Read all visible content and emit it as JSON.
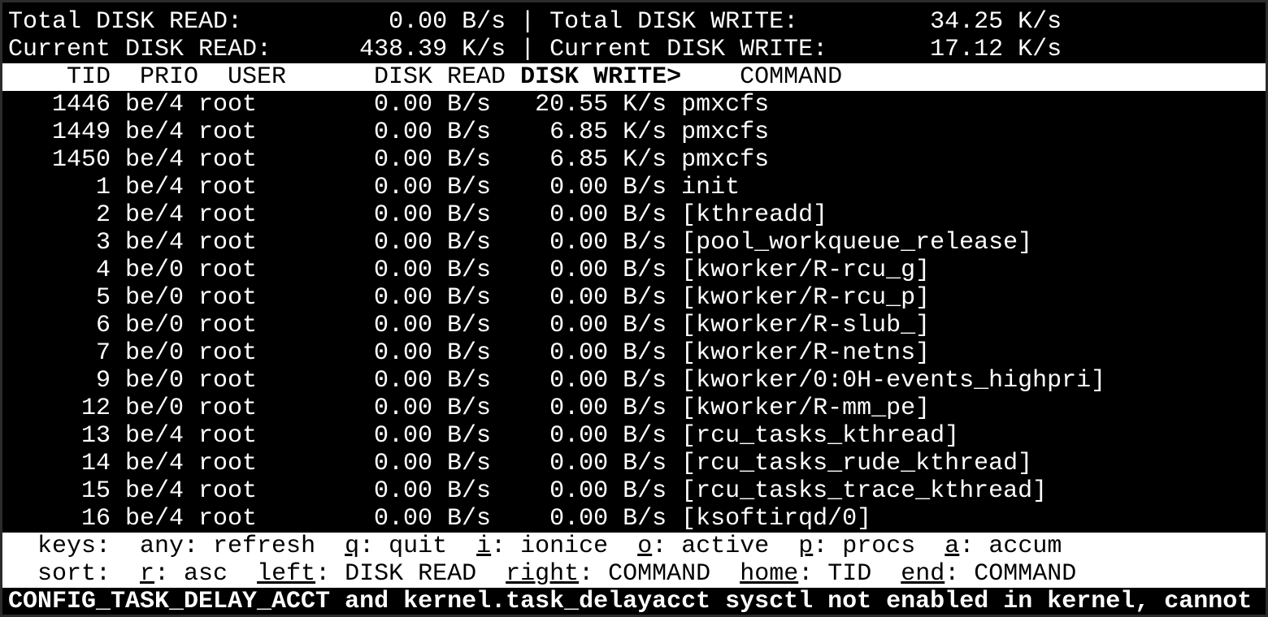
{
  "summary": {
    "total_read_label": "Total DISK READ:",
    "total_read": "0.00 B/s",
    "total_write_label": "Total DISK WRITE:",
    "total_write": "34.25 K/s",
    "current_read_label": "Current DISK READ:",
    "current_read": "438.39 K/s",
    "current_write_label": "Current DISK WRITE:",
    "current_write": "17.12 K/s",
    "separator": "|"
  },
  "columns": {
    "tid": "TID",
    "prio": "PRIO",
    "user": "USER",
    "disk_read": "DISK READ",
    "disk_write": "DISK WRITE>",
    "command": "COMMAND"
  },
  "rows": [
    {
      "tid": "1446",
      "prio": "be/4",
      "user": "root",
      "read": "0.00 B/s",
      "write": "20.55 K/s",
      "command": "pmxcfs"
    },
    {
      "tid": "1449",
      "prio": "be/4",
      "user": "root",
      "read": "0.00 B/s",
      "write": "6.85 K/s",
      "command": "pmxcfs"
    },
    {
      "tid": "1450",
      "prio": "be/4",
      "user": "root",
      "read": "0.00 B/s",
      "write": "6.85 K/s",
      "command": "pmxcfs"
    },
    {
      "tid": "1",
      "prio": "be/4",
      "user": "root",
      "read": "0.00 B/s",
      "write": "0.00 B/s",
      "command": "init"
    },
    {
      "tid": "2",
      "prio": "be/4",
      "user": "root",
      "read": "0.00 B/s",
      "write": "0.00 B/s",
      "command": "[kthreadd]"
    },
    {
      "tid": "3",
      "prio": "be/4",
      "user": "root",
      "read": "0.00 B/s",
      "write": "0.00 B/s",
      "command": "[pool_workqueue_release]"
    },
    {
      "tid": "4",
      "prio": "be/0",
      "user": "root",
      "read": "0.00 B/s",
      "write": "0.00 B/s",
      "command": "[kworker/R-rcu_g]"
    },
    {
      "tid": "5",
      "prio": "be/0",
      "user": "root",
      "read": "0.00 B/s",
      "write": "0.00 B/s",
      "command": "[kworker/R-rcu_p]"
    },
    {
      "tid": "6",
      "prio": "be/0",
      "user": "root",
      "read": "0.00 B/s",
      "write": "0.00 B/s",
      "command": "[kworker/R-slub_]"
    },
    {
      "tid": "7",
      "prio": "be/0",
      "user": "root",
      "read": "0.00 B/s",
      "write": "0.00 B/s",
      "command": "[kworker/R-netns]"
    },
    {
      "tid": "9",
      "prio": "be/0",
      "user": "root",
      "read": "0.00 B/s",
      "write": "0.00 B/s",
      "command": "[kworker/0:0H-events_highpri]"
    },
    {
      "tid": "12",
      "prio": "be/0",
      "user": "root",
      "read": "0.00 B/s",
      "write": "0.00 B/s",
      "command": "[kworker/R-mm_pe]"
    },
    {
      "tid": "13",
      "prio": "be/4",
      "user": "root",
      "read": "0.00 B/s",
      "write": "0.00 B/s",
      "command": "[rcu_tasks_kthread]"
    },
    {
      "tid": "14",
      "prio": "be/4",
      "user": "root",
      "read": "0.00 B/s",
      "write": "0.00 B/s",
      "command": "[rcu_tasks_rude_kthread]"
    },
    {
      "tid": "15",
      "prio": "be/4",
      "user": "root",
      "read": "0.00 B/s",
      "write": "0.00 B/s",
      "command": "[rcu_tasks_trace_kthread]"
    },
    {
      "tid": "16",
      "prio": "be/4",
      "user": "root",
      "read": "0.00 B/s",
      "write": "0.00 B/s",
      "command": "[ksoftirqd/0]"
    }
  ],
  "keys": {
    "label": "keys:",
    "items": [
      {
        "key": "any",
        "desc": "refresh",
        "underline": false
      },
      {
        "key": "q",
        "desc": "quit",
        "underline": true
      },
      {
        "key": "i",
        "desc": "ionice",
        "underline": true
      },
      {
        "key": "o",
        "desc": "active",
        "underline": true
      },
      {
        "key": "p",
        "desc": "procs",
        "underline": true
      },
      {
        "key": "a",
        "desc": "accum",
        "underline": true
      }
    ]
  },
  "sort": {
    "label": "sort:",
    "items": [
      {
        "key": "r",
        "desc": "asc",
        "underline": true
      },
      {
        "key": "left",
        "desc": "DISK READ",
        "underline": true
      },
      {
        "key": "right",
        "desc": "COMMAND",
        "underline": true
      },
      {
        "key": "home",
        "desc": "TID",
        "underline": true
      },
      {
        "key": "end",
        "desc": "COMMAND",
        "underline": true
      }
    ]
  },
  "warning": "CONFIG_TASK_DELAY_ACCT and kernel.task_delayacct sysctl not enabled in kernel, cannot"
}
